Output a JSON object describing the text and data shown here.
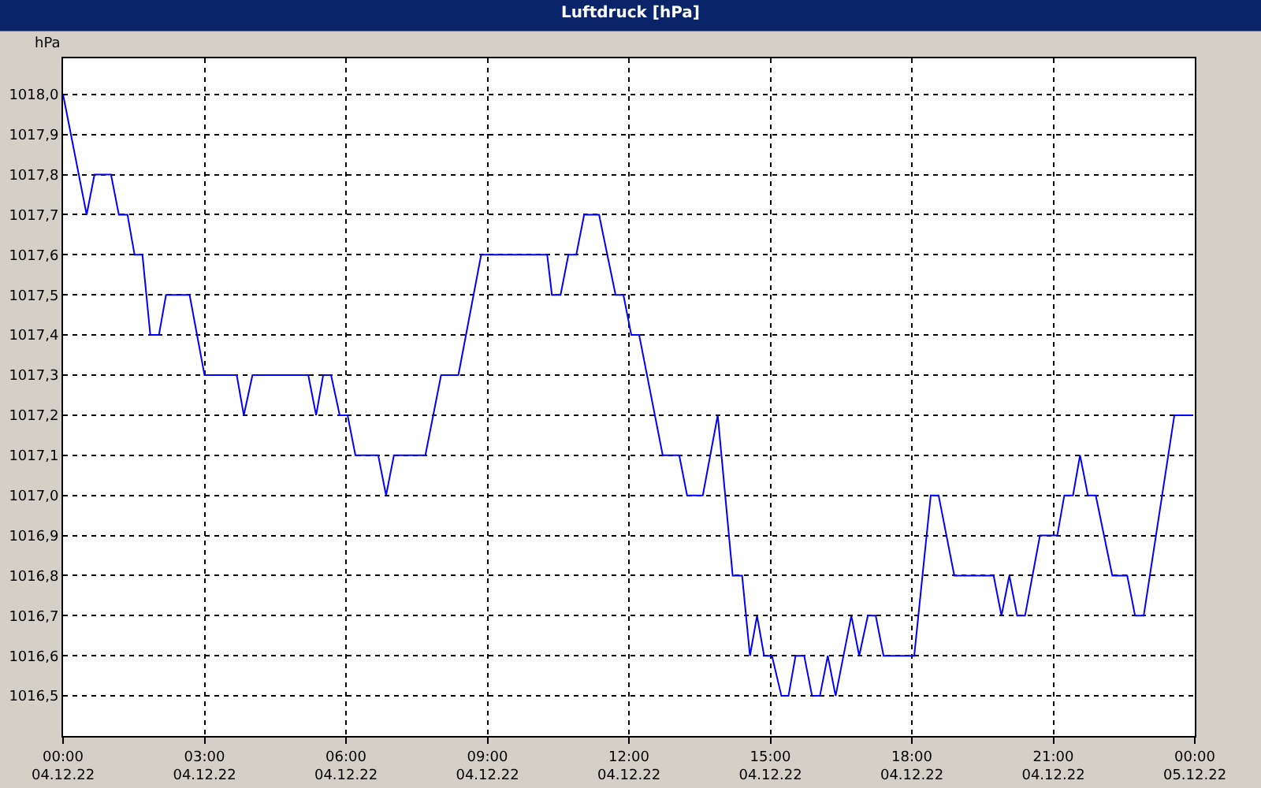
{
  "chart_data": {
    "type": "line",
    "title": "Luftdruck [hPa]",
    "ylabel": "hPa",
    "x": [
      "--12-04T00:00",
      "--12-04T00:30",
      "--12-04T00:40",
      "--12-04T01:01",
      "--12-04T01:11",
      "--12-04T01:22",
      "--12-04T01:31",
      "--12-04T01:41",
      "--12-04T01:51",
      "--12-04T02:02",
      "--12-04T02:11",
      "--12-04T02:41",
      "--12-04T03:00",
      "--12-04T03:41",
      "--12-04T03:50",
      "--12-04T04:01",
      "--12-04T05:12",
      "--12-04T05:22",
      "--12-04T05:31",
      "--12-04T05:41",
      "--12-04T05:52",
      "--12-04T06:02",
      "--12-04T06:12",
      "--12-04T06:41",
      "--12-04T06:51",
      "--12-04T07:01",
      "--12-04T07:41",
      "--12-04T08:01",
      "--12-04T08:23",
      "--12-04T08:52",
      "--12-04T10:16",
      "--12-04T10:22",
      "--12-04T10:33",
      "--12-04T10:43",
      "--12-04T10:53",
      "--12-04T11:03",
      "--12-04T11:22",
      "--12-04T11:43",
      "--12-04T11:53",
      "--12-04T12:03",
      "--12-04T12:13",
      "--12-04T12:43",
      "--12-04T13:04",
      "--12-04T13:14",
      "--12-04T13:34",
      "--12-04T13:53",
      "--12-04T14:12",
      "--12-04T14:24",
      "--12-04T14:34",
      "--12-04T14:43",
      "--12-04T14:52",
      "--12-04T15:02",
      "--12-04T15:14",
      "--12-04T15:23",
      "--12-04T15:32",
      "--12-04T15:43",
      "--12-04T15:53",
      "--12-04T16:03",
      "--12-04T16:13",
      "--12-04T16:23",
      "--12-04T16:43",
      "--12-04T16:53",
      "--12-04T17:04",
      "--12-04T17:14",
      "--12-04T17:24",
      "--12-04T18:03",
      "--12-04T18:24",
      "--12-04T18:34",
      "--12-04T18:54",
      "--12-04T19:44",
      "--12-04T19:54",
      "--12-04T20:04",
      "--12-04T20:14",
      "--12-04T20:24",
      "--12-04T20:43",
      "--12-04T21:05",
      "--12-04T21:14",
      "--12-04T21:25",
      "--12-04T21:34",
      "--12-04T21:44",
      "--12-04T21:54",
      "--12-04T22:15",
      "--12-04T22:34",
      "--12-04T22:44",
      "--12-04T22:55",
      "--12-04T23:34",
      "--12-04T23:57"
    ],
    "series": [
      {
        "color": "#0000ff",
        "values": [
          1018.0,
          1017.7,
          1017.8,
          1017.8,
          1017.7,
          1017.7,
          1017.6,
          1017.6,
          1017.4,
          1017.4,
          1017.5,
          1017.5,
          1017.3,
          1017.3,
          1017.2,
          1017.3,
          1017.3,
          1017.2,
          1017.3,
          1017.3,
          1017.2,
          1017.2,
          1017.1,
          1017.1,
          1017.0,
          1017.1,
          1017.1,
          1017.3,
          1017.3,
          1017.6,
          1017.6,
          1017.5,
          1017.5,
          1017.6,
          1017.6,
          1017.7,
          1017.7,
          1017.5,
          1017.5,
          1017.4,
          1017.4,
          1017.1,
          1017.1,
          1017.0,
          1017.0,
          1017.2,
          1016.8,
          1016.8,
          1016.6,
          1016.7,
          1016.6,
          1016.6,
          1016.5,
          1016.5,
          1016.6,
          1016.6,
          1016.5,
          1016.5,
          1016.6,
          1016.5,
          1016.7,
          1016.6,
          1016.7,
          1016.7,
          1016.6,
          1016.6,
          1017.0,
          1017.0,
          1016.8,
          1016.8,
          1016.7,
          1016.8,
          1016.7,
          1016.7,
          1016.9,
          1016.9,
          1017.0,
          1017.0,
          1017.1,
          1017.0,
          1017.0,
          1016.8,
          1016.8,
          1016.7,
          1016.7,
          1017.2,
          1017.2
        ]
      }
    ],
    "xlim": [
      "--12-04T00:00",
      "--12-05T00:00"
    ],
    "xticks": [
      {
        "value": "--12-04T00:00",
        "label": "00:00\n04.12.22"
      },
      {
        "value": "--12-04T03:00",
        "label": "03:00\n04.12.22"
      },
      {
        "value": "--12-04T06:00",
        "label": "06:00\n04.12.22"
      },
      {
        "value": "--12-04T09:00",
        "label": "09:00\n04.12.22"
      },
      {
        "value": "--12-04T12:00",
        "label": "12:00\n04.12.22"
      },
      {
        "value": "--12-04T15:00",
        "label": "15:00\n04.12.22"
      },
      {
        "value": "--12-04T18:00",
        "label": "18:00\n04.12.22"
      },
      {
        "value": "--12-04T21:00",
        "label": "21:00\n04.12.22"
      },
      {
        "value": "--12-05T00:00",
        "label": "00:00\n05.12.22"
      }
    ],
    "ylim": [
      1016.4,
      1018.09
    ],
    "yticks": [
      {
        "value": 1016.5,
        "label": "1016,5"
      },
      {
        "value": 1016.6,
        "label": "1016,6"
      },
      {
        "value": 1016.7,
        "label": "1016,7"
      },
      {
        "value": 1016.8,
        "label": "1016,8"
      },
      {
        "value": 1016.9,
        "label": "1016,9"
      },
      {
        "value": 1017.0,
        "label": "1017,0"
      },
      {
        "value": 1017.1,
        "label": "1017,1"
      },
      {
        "value": 1017.2,
        "label": "1017,2"
      },
      {
        "value": 1017.3,
        "label": "1017,3"
      },
      {
        "value": 1017.4,
        "label": "1017,4"
      },
      {
        "value": 1017.5,
        "label": "1017,5"
      },
      {
        "value": 1017.6,
        "label": "1017,6"
      },
      {
        "value": 1017.7,
        "label": "1017,7"
      },
      {
        "value": 1017.8,
        "label": "1017,8"
      },
      {
        "value": 1017.9,
        "label": "1017,9"
      },
      {
        "value": 1018.0,
        "label": "1018,0"
      }
    ],
    "grid": true,
    "marker": "none",
    "line_style": "solid"
  }
}
